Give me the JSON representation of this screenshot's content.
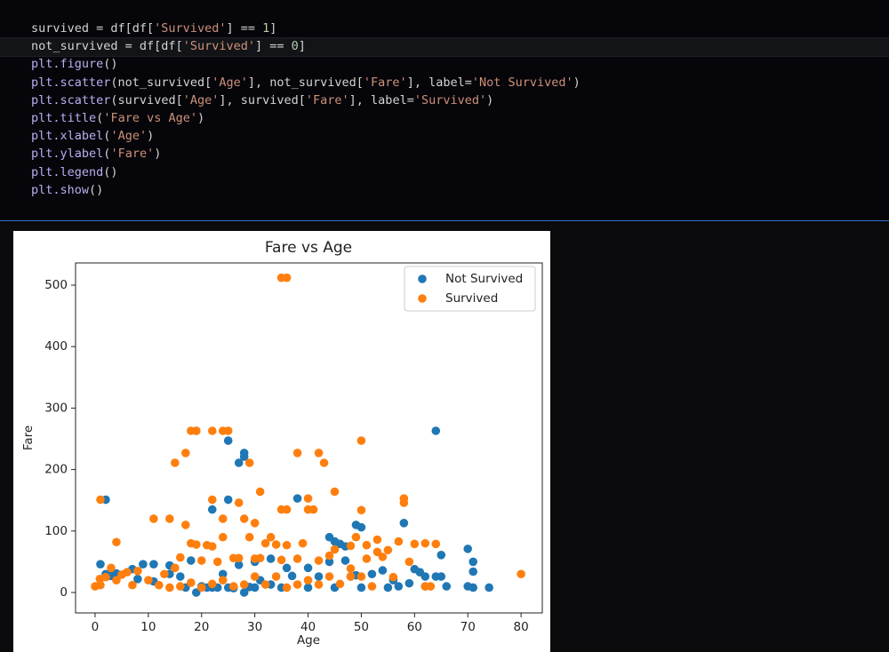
{
  "code": {
    "lines": [
      "survived = df[df['Survived'] == 1]",
      "not_survived = df[df['Survived'] == 0]",
      "plt.figure()",
      "plt.scatter(not_survived['Age'], not_survived['Fare'], label='Not Survived')",
      "plt.scatter(survived['Age'], survived['Fare'], label='Survived')",
      "plt.title('Fare vs Age')",
      "plt.xlabel('Age')",
      "plt.ylabel('Fare')",
      "plt.legend()",
      "plt.show()"
    ]
  },
  "chart_data": {
    "type": "scatter",
    "title": "Fare vs Age",
    "x_label": "Age",
    "y_label": "Fare",
    "xlim": [
      -3.67,
      83.99
    ],
    "ylim": [
      -33.2,
      536.1
    ],
    "xticks": [
      0,
      10,
      20,
      30,
      40,
      50,
      60,
      70,
      80
    ],
    "yticks": [
      0,
      100,
      200,
      300,
      400,
      500
    ],
    "legend": "upper right",
    "series": [
      {
        "name": "Not Survived",
        "color": "#1f77b4",
        "x": [
          64,
          19,
          25,
          28,
          28,
          27,
          38,
          25,
          2,
          22,
          58,
          49,
          50,
          44,
          45,
          46,
          47,
          71,
          70,
          65,
          71,
          60,
          61,
          62,
          64,
          65,
          66,
          70,
          71,
          74,
          62,
          57,
          55,
          52,
          40,
          36,
          33,
          30,
          27,
          24,
          21,
          22,
          19,
          28,
          18,
          14,
          11,
          9,
          7,
          4,
          2,
          1,
          3,
          16,
          20,
          25,
          30,
          35,
          40,
          45,
          50,
          33,
          29,
          26,
          23,
          17,
          42,
          48,
          54,
          56,
          59,
          31,
          37,
          44,
          47,
          49,
          14,
          11,
          8
        ],
        "values": [
          263,
          263,
          247,
          227,
          221,
          211,
          153,
          151,
          151,
          135,
          113,
          110,
          106,
          90,
          83,
          79,
          75,
          50,
          71,
          61,
          34,
          38,
          33,
          26,
          26,
          26,
          10,
          10,
          8,
          8,
          10,
          10,
          8,
          30,
          40,
          40,
          55,
          50,
          45,
          30,
          8,
          8,
          0,
          0,
          52,
          44,
          46,
          46,
          38,
          31,
          30,
          46,
          27,
          26,
          10,
          8,
          8,
          8,
          8,
          8,
          8,
          13,
          9,
          7,
          8,
          8,
          26,
          26,
          36,
          20,
          15,
          20,
          27,
          50,
          52,
          28,
          30,
          18,
          22
        ]
      },
      {
        "name": "Survived",
        "color": "#ff7f0e",
        "x": [
          35,
          36,
          18,
          19,
          24,
          25,
          22,
          50,
          17,
          38,
          42,
          43,
          29,
          15,
          58,
          58,
          40,
          22,
          27,
          45,
          31,
          1,
          40,
          41,
          36,
          35,
          50,
          24,
          11,
          14,
          28,
          30,
          17,
          4,
          33,
          29,
          24,
          18,
          19,
          21,
          16,
          26,
          32,
          34,
          36,
          39,
          49,
          51,
          53,
          57,
          60,
          62,
          64,
          48,
          55,
          45,
          53,
          54,
          51,
          44,
          42,
          38,
          35,
          30,
          27,
          22,
          20,
          15,
          13,
          8,
          6,
          5,
          3,
          2,
          1,
          0.9,
          0,
          4,
          7,
          10,
          12,
          14,
          16,
          18,
          20,
          22,
          24,
          26,
          28,
          30,
          32,
          34,
          36,
          38,
          40,
          42,
          44,
          46,
          48,
          50,
          52,
          56,
          59,
          62,
          63,
          80,
          48,
          31,
          23
        ],
        "values": [
          512,
          512,
          263,
          263,
          263,
          263,
          263,
          247,
          227,
          227,
          227,
          211,
          211,
          211,
          153,
          146,
          153,
          151,
          146,
          164,
          164,
          151,
          135,
          135,
          135,
          135,
          134,
          120,
          120,
          120,
          120,
          113,
          110,
          82,
          90,
          90,
          90,
          80,
          78,
          77,
          57,
          56,
          80,
          78,
          77,
          80,
          90,
          77,
          86,
          83,
          79,
          80,
          79,
          76,
          69,
          70,
          66,
          58,
          55,
          60,
          52,
          55,
          53,
          55,
          56,
          75,
          52,
          40,
          30,
          35,
          33,
          29,
          40,
          25,
          12,
          22,
          10,
          20,
          12,
          20,
          12,
          8,
          10,
          16,
          8,
          14,
          20,
          10,
          13,
          26,
          13,
          26,
          8,
          13,
          20,
          13,
          26,
          14,
          26,
          26,
          10,
          25,
          50,
          10,
          10,
          30,
          39,
          56,
          50
        ]
      }
    ]
  }
}
